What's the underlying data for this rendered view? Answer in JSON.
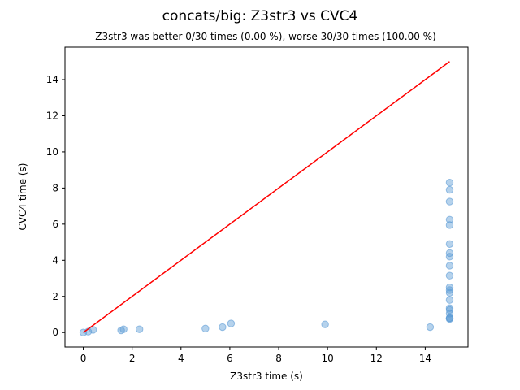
{
  "chart_data": {
    "type": "scatter",
    "title": "concats/big: Z3str3 vs CVC4",
    "subtitle": "Z3str3 was better 0/30 times (0.00 %), worse 30/30 times (100.00 %)",
    "xlabel": "Z3str3 time (s)",
    "ylabel": "CVC4 time (s)",
    "xlim": [
      -0.75,
      15.75
    ],
    "ylim": [
      -0.8,
      15.8
    ],
    "x_ticks": [
      0,
      2,
      4,
      6,
      8,
      10,
      12,
      14
    ],
    "y_ticks": [
      0,
      2,
      4,
      6,
      8,
      10,
      12,
      14
    ],
    "grid": false,
    "series": [
      {
        "color": "#5b9bd5",
        "points": [
          [
            0.0,
            0.0
          ],
          [
            0.2,
            0.05
          ],
          [
            0.4,
            0.15
          ],
          [
            1.55,
            0.12
          ],
          [
            1.65,
            0.18
          ],
          [
            2.3,
            0.18
          ],
          [
            5.0,
            0.22
          ],
          [
            5.7,
            0.3
          ],
          [
            6.05,
            0.5
          ],
          [
            9.9,
            0.45
          ],
          [
            14.2,
            0.3
          ],
          [
            15.0,
            8.3
          ],
          [
            15.0,
            7.9
          ],
          [
            15.0,
            7.25
          ],
          [
            15.0,
            6.25
          ],
          [
            15.0,
            5.95
          ],
          [
            15.0,
            4.9
          ],
          [
            15.0,
            4.4
          ],
          [
            15.0,
            4.2
          ],
          [
            15.0,
            3.7
          ],
          [
            15.0,
            3.15
          ],
          [
            15.0,
            2.5
          ],
          [
            15.0,
            2.35
          ],
          [
            15.0,
            2.2
          ],
          [
            15.0,
            1.8
          ],
          [
            15.0,
            1.35
          ],
          [
            15.0,
            1.25
          ],
          [
            15.0,
            1.05
          ],
          [
            15.0,
            0.8
          ],
          [
            15.0,
            0.75
          ],
          [
            15.0,
            0.8
          ]
        ]
      }
    ],
    "reference_line": {
      "color": "#ff0000",
      "points": [
        [
          0,
          0
        ],
        [
          15,
          15
        ]
      ]
    }
  }
}
